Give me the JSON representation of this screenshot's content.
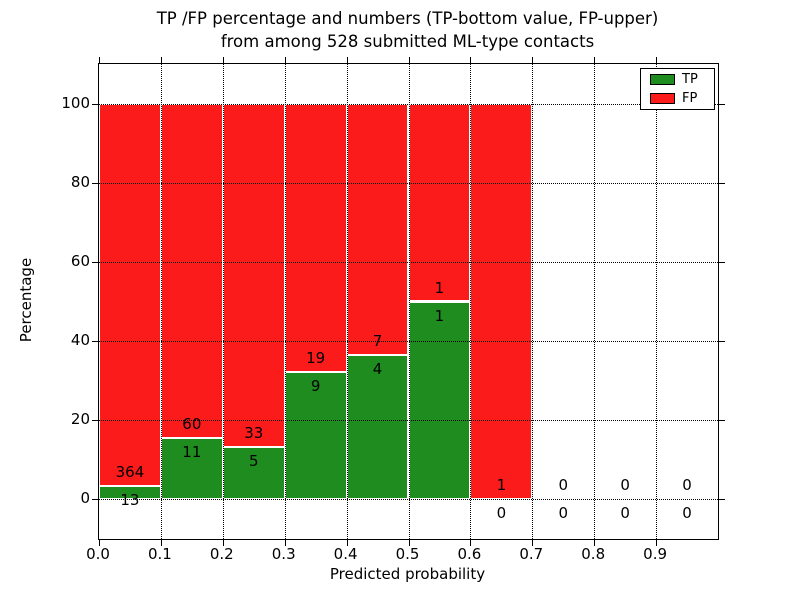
{
  "title": {
    "line1": "TP /FP percentage and numbers (TP-bottom value, FP-upper)",
    "line2": "from among 528 submitted ML-type contacts"
  },
  "chart_data": {
    "type": "bar",
    "stacked": true,
    "title": "TP /FP percentage and numbers (TP-bottom value, FP-upper)\nfrom among 528 submitted ML-type contacts",
    "xlabel": "Predicted probability",
    "ylabel": "Percentage",
    "xlim": [
      0.0,
      1.0
    ],
    "ylim": [
      -10,
      110
    ],
    "x_tick_labels": [
      "0.0",
      "0.1",
      "0.2",
      "0.3",
      "0.4",
      "0.5",
      "0.6",
      "0.7",
      "0.8",
      "0.9"
    ],
    "x_tick_values": [
      0.0,
      0.1,
      0.2,
      0.3,
      0.4,
      0.5,
      0.6,
      0.7,
      0.8,
      0.9
    ],
    "y_tick_values": [
      0,
      20,
      40,
      60,
      80,
      100
    ],
    "grid": "dotted, drawn over bars",
    "legend": {
      "position": "upper right",
      "entries": [
        {
          "label": "TP",
          "color": "#1f8c1f"
        },
        {
          "label": "FP",
          "color": "#fb1b1b"
        }
      ]
    },
    "series_note": "Each 0.1-wide bin stacks TP% (green, bottom) and FP% (red, top) to 100%; numeric labels show raw counts (TP below boundary, FP above boundary)",
    "bins": [
      {
        "x_start": 0.0,
        "x_end": 0.1,
        "tp_count": 13,
        "fp_count": 364,
        "tp_pct": 3.45,
        "fp_pct": 96.55
      },
      {
        "x_start": 0.1,
        "x_end": 0.2,
        "tp_count": 11,
        "fp_count": 60,
        "tp_pct": 15.49,
        "fp_pct": 84.51
      },
      {
        "x_start": 0.2,
        "x_end": 0.3,
        "tp_count": 5,
        "fp_count": 33,
        "tp_pct": 13.16,
        "fp_pct": 86.84
      },
      {
        "x_start": 0.3,
        "x_end": 0.4,
        "tp_count": 9,
        "fp_count": 19,
        "tp_pct": 32.14,
        "fp_pct": 67.86
      },
      {
        "x_start": 0.4,
        "x_end": 0.5,
        "tp_count": 4,
        "fp_count": 7,
        "tp_pct": 36.36,
        "fp_pct": 63.64
      },
      {
        "x_start": 0.5,
        "x_end": 0.6,
        "tp_count": 1,
        "fp_count": 1,
        "tp_pct": 50.0,
        "fp_pct": 50.0
      },
      {
        "x_start": 0.6,
        "x_end": 0.7,
        "tp_count": 0,
        "fp_count": 1,
        "tp_pct": 0.0,
        "fp_pct": 100.0
      },
      {
        "x_start": 0.7,
        "x_end": 0.8,
        "tp_count": 0,
        "fp_count": 0,
        "tp_pct": 0.0,
        "fp_pct": 0.0
      },
      {
        "x_start": 0.8,
        "x_end": 0.9,
        "tp_count": 0,
        "fp_count": 0,
        "tp_pct": 0.0,
        "fp_pct": 0.0
      },
      {
        "x_start": 0.9,
        "x_end": 1.0,
        "tp_count": 0,
        "fp_count": 0,
        "tp_pct": 0.0,
        "fp_pct": 0.0
      }
    ],
    "colors": {
      "tp": "#1f8c1f",
      "fp": "#fb1b1b",
      "grid": "#000000",
      "bar_edge": "#ffffff",
      "background": "#ffffff"
    }
  }
}
